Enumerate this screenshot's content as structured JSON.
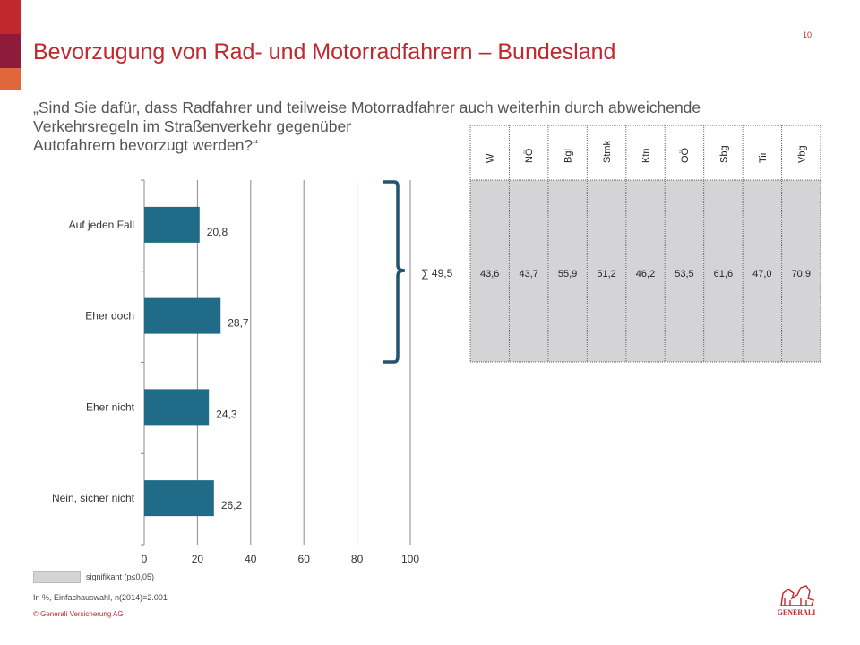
{
  "page": {
    "title": "Bevorzugung von Rad- und Motorradfahrern – Bundesland",
    "page_number": "10",
    "question_line1": "„Sind Sie dafür, dass Radfahrer und teilweise Motorradfahrer auch weiterhin durch abweichende",
    "question_line2": "Verkehrsregeln im Straßenverkehr gegenüber",
    "question_line3": "Autofahrern bevorzugt werden?“",
    "legend_label": "signifikant (p≤0,05)",
    "note": "In %, Einfachauswahl, n(2014)=2.001",
    "copyright": "© Generali Versicherung AG",
    "logo_text": "GENERALI"
  },
  "colors": {
    "bar": "#206b87",
    "title": "#c1272d",
    "table_fill": "#d4d4d6",
    "bracket": "#21546e",
    "sidebar": [
      "#c1272d",
      "#8e1a3c",
      "#e0663b"
    ]
  },
  "chart_data": [
    {
      "type": "bar",
      "orientation": "horizontal",
      "categories": [
        "Auf jeden Fall",
        "Eher doch",
        "Eher nicht",
        "Nein, sicher nicht"
      ],
      "values": [
        20.8,
        28.7,
        24.3,
        26.2
      ],
      "value_labels": [
        "20,8",
        "28,7",
        "24,3",
        "26,2"
      ],
      "xlim": [
        0,
        100
      ],
      "xticks": [
        0,
        20,
        40,
        60,
        80,
        100
      ],
      "xtick_labels": [
        "0",
        "20",
        "40",
        "60",
        "80",
        "100"
      ],
      "grid": true
    },
    {
      "type": "table",
      "sum_label": "∑ 49,5",
      "sum_value": 49.5,
      "columns": [
        "W",
        "NÖ",
        "Bgl",
        "Stmk",
        "Ktn",
        "OÖ",
        "Sbg",
        "Tir",
        "Vbg"
      ],
      "values": [
        43.6,
        43.7,
        55.9,
        51.2,
        46.2,
        53.5,
        61.6,
        47.0,
        70.9
      ],
      "value_labels": [
        "43,6",
        "43,7",
        "55,9",
        "51,2",
        "46,2",
        "53,5",
        "61,6",
        "47,0",
        "70,9"
      ],
      "significant": [
        true,
        true,
        true,
        true,
        true,
        true,
        true,
        true,
        true
      ]
    }
  ]
}
